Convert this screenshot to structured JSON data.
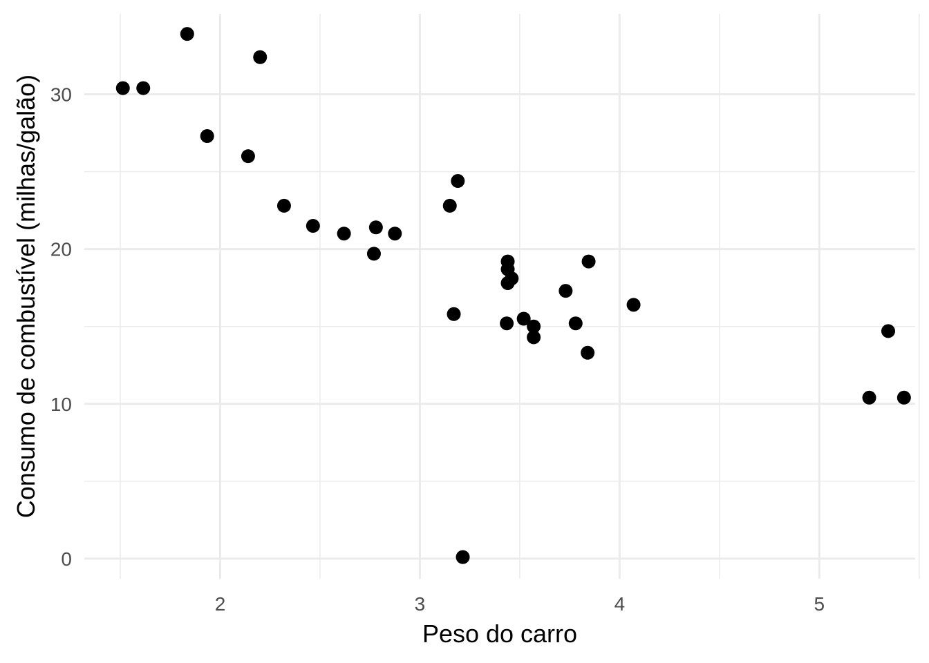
{
  "chart_data": {
    "type": "scatter",
    "title": "",
    "xlabel": "Peso do carro",
    "ylabel": "Consumo de combustível (milhas/galão)",
    "xlim": [
      1.32,
      5.48
    ],
    "ylim": [
      -1.3,
      35.2
    ],
    "x_ticks": [
      2,
      3,
      4,
      5
    ],
    "x_tick_labels": [
      "2",
      "3",
      "4",
      "5"
    ],
    "x_minor_ticks": [
      1.5,
      2.5,
      3.5,
      4.5,
      5.5
    ],
    "y_ticks": [
      0,
      10,
      20,
      30
    ],
    "y_tick_labels": [
      "0",
      "10",
      "20",
      "30"
    ],
    "y_minor_ticks": [
      5,
      15,
      25
    ],
    "grid": true,
    "point_color": "#000000",
    "grid_color": "#ebebeb",
    "series": [
      {
        "x": [
          2.62,
          2.875,
          2.32,
          3.215,
          3.44,
          3.46,
          3.57,
          3.19,
          3.15,
          3.44,
          3.44,
          4.07,
          3.73,
          3.78,
          5.25,
          5.424,
          5.345,
          2.2,
          1.615,
          1.835,
          2.465,
          3.52,
          3.435,
          3.84,
          3.845,
          1.935,
          2.14,
          1.513,
          3.17,
          2.77,
          3.57,
          2.78
        ],
        "y": [
          21.0,
          21.0,
          22.8,
          0.1,
          18.7,
          18.1,
          14.3,
          24.4,
          22.8,
          19.2,
          17.8,
          16.4,
          17.3,
          15.2,
          10.4,
          10.4,
          14.7,
          32.4,
          30.4,
          33.9,
          21.5,
          15.5,
          15.2,
          13.3,
          19.2,
          27.3,
          26.0,
          30.4,
          15.8,
          19.7,
          15.0,
          21.4
        ]
      }
    ]
  }
}
